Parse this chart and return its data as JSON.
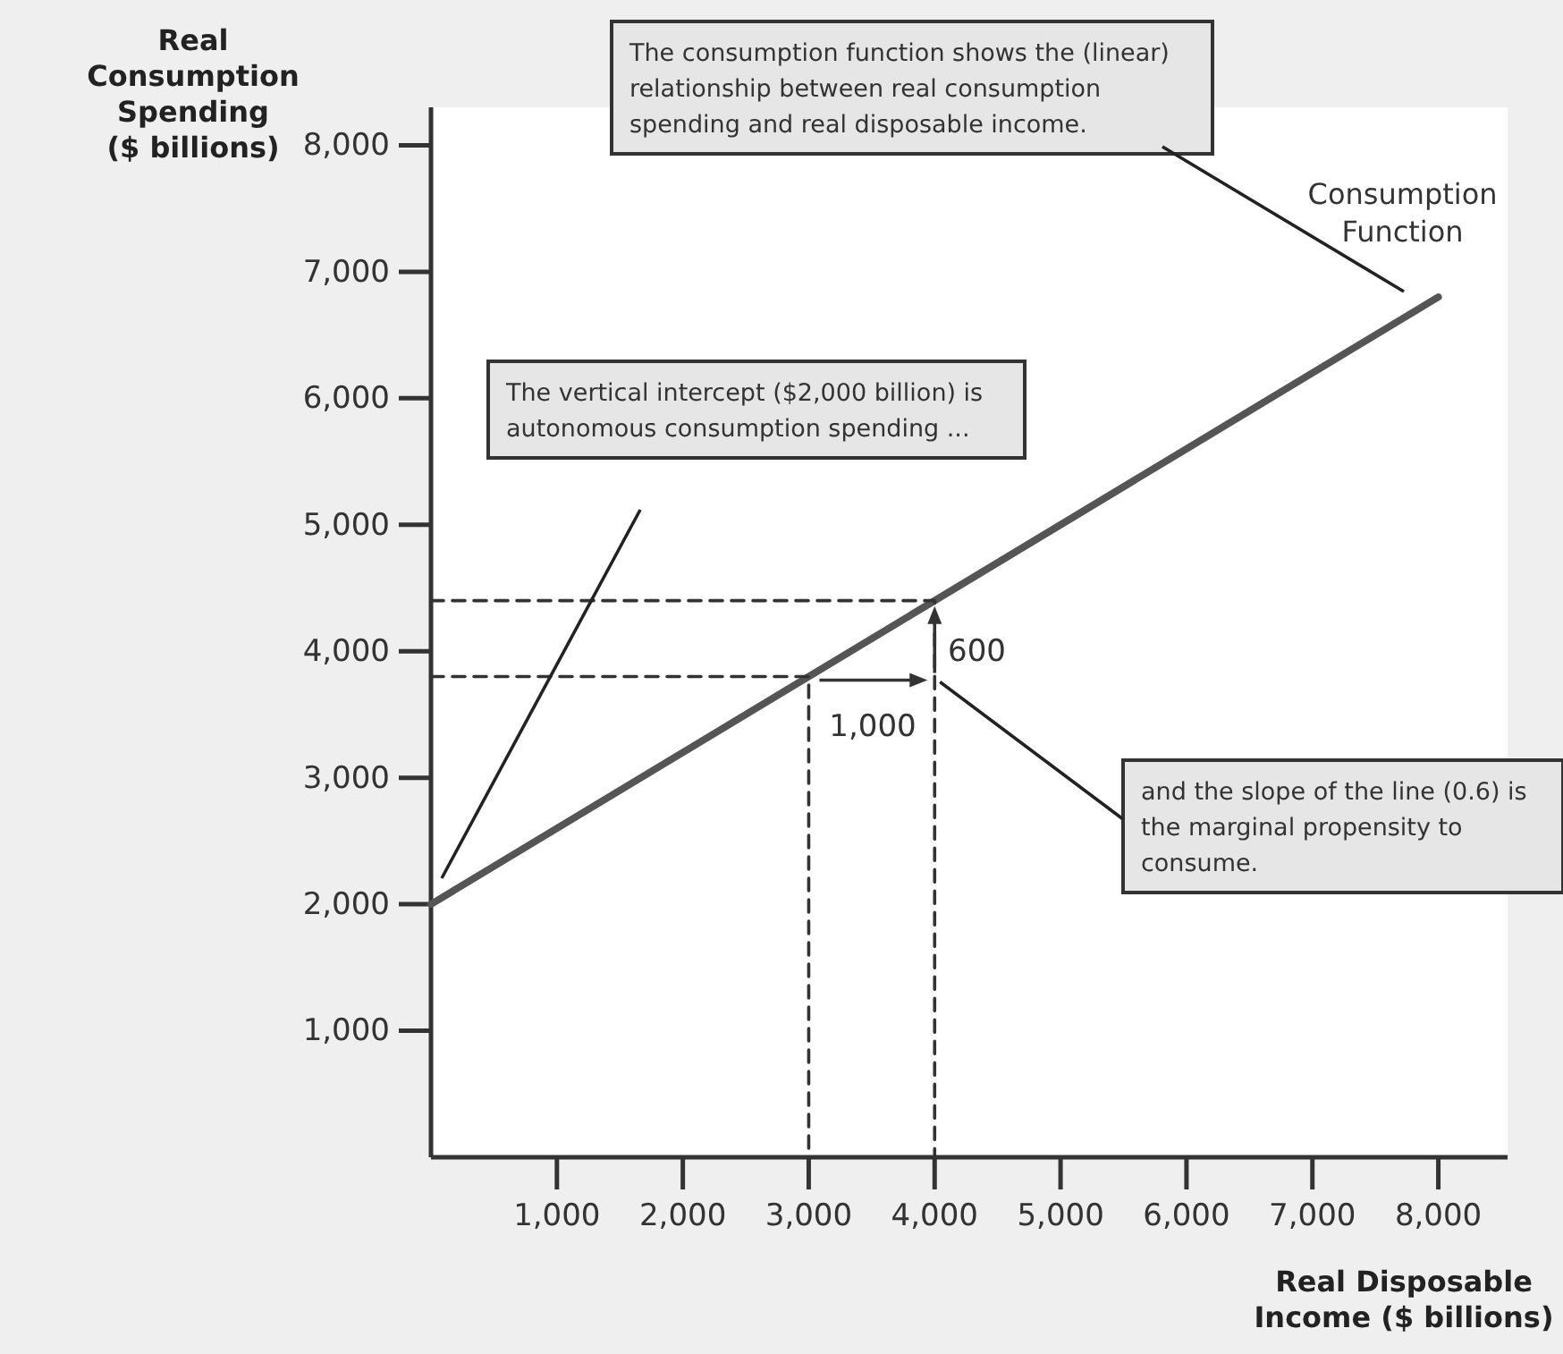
{
  "chart_data": {
    "type": "line",
    "xlabel": "Real Disposable Income ($ billions)",
    "ylabel": "Real Consumption Spending ($ billions)",
    "x": [
      0,
      8000
    ],
    "xlim": [
      0,
      8550
    ],
    "xticks": [
      {
        "value": 1000,
        "label": "1,000"
      },
      {
        "value": 2000,
        "label": "2,000"
      },
      {
        "value": 3000,
        "label": "3,000"
      },
      {
        "value": 4000,
        "label": "4,000"
      },
      {
        "value": 5000,
        "label": "5,000"
      },
      {
        "value": 6000,
        "label": "6,000"
      },
      {
        "value": 7000,
        "label": "7,000"
      },
      {
        "value": 8000,
        "label": "8,000"
      }
    ],
    "ylim": [
      0,
      8300
    ],
    "yticks": [
      {
        "value": 1000,
        "label": "1,000"
      },
      {
        "value": 2000,
        "label": "2,000"
      },
      {
        "value": 3000,
        "label": "3,000"
      },
      {
        "value": 4000,
        "label": "4,000"
      },
      {
        "value": 5000,
        "label": "5,000"
      },
      {
        "value": 6000,
        "label": "6,000"
      },
      {
        "value": 7000,
        "label": "7,000"
      },
      {
        "value": 8000,
        "label": "8,000"
      }
    ],
    "grid": false,
    "series": [
      {
        "name": "Consumption Function",
        "color": "#555555",
        "values": [
          2000,
          6800
        ]
      },
      {
        "color": "#333333",
        "x": [
          0,
          3000,
          3000
        ],
        "values": [
          3800,
          3800,
          0
        ],
        "line_style": "dashed"
      },
      {
        "color": "#333333",
        "x": [
          0,
          4000,
          4000
        ],
        "values": [
          4400,
          4400,
          0
        ],
        "line_style": "dashed"
      }
    ],
    "annotations": [
      "The consumption function shows the (linear) relationship between real consumption spending and real disposable income.",
      "The vertical intercept ($2,000 billion) is autonomous consumption spending ...",
      {
        "text": "and the slope of the line (0.6) is the marginal propensity to consume.",
        "x": 4000,
        "y": 3800
      },
      "1,000",
      "600"
    ]
  }
}
